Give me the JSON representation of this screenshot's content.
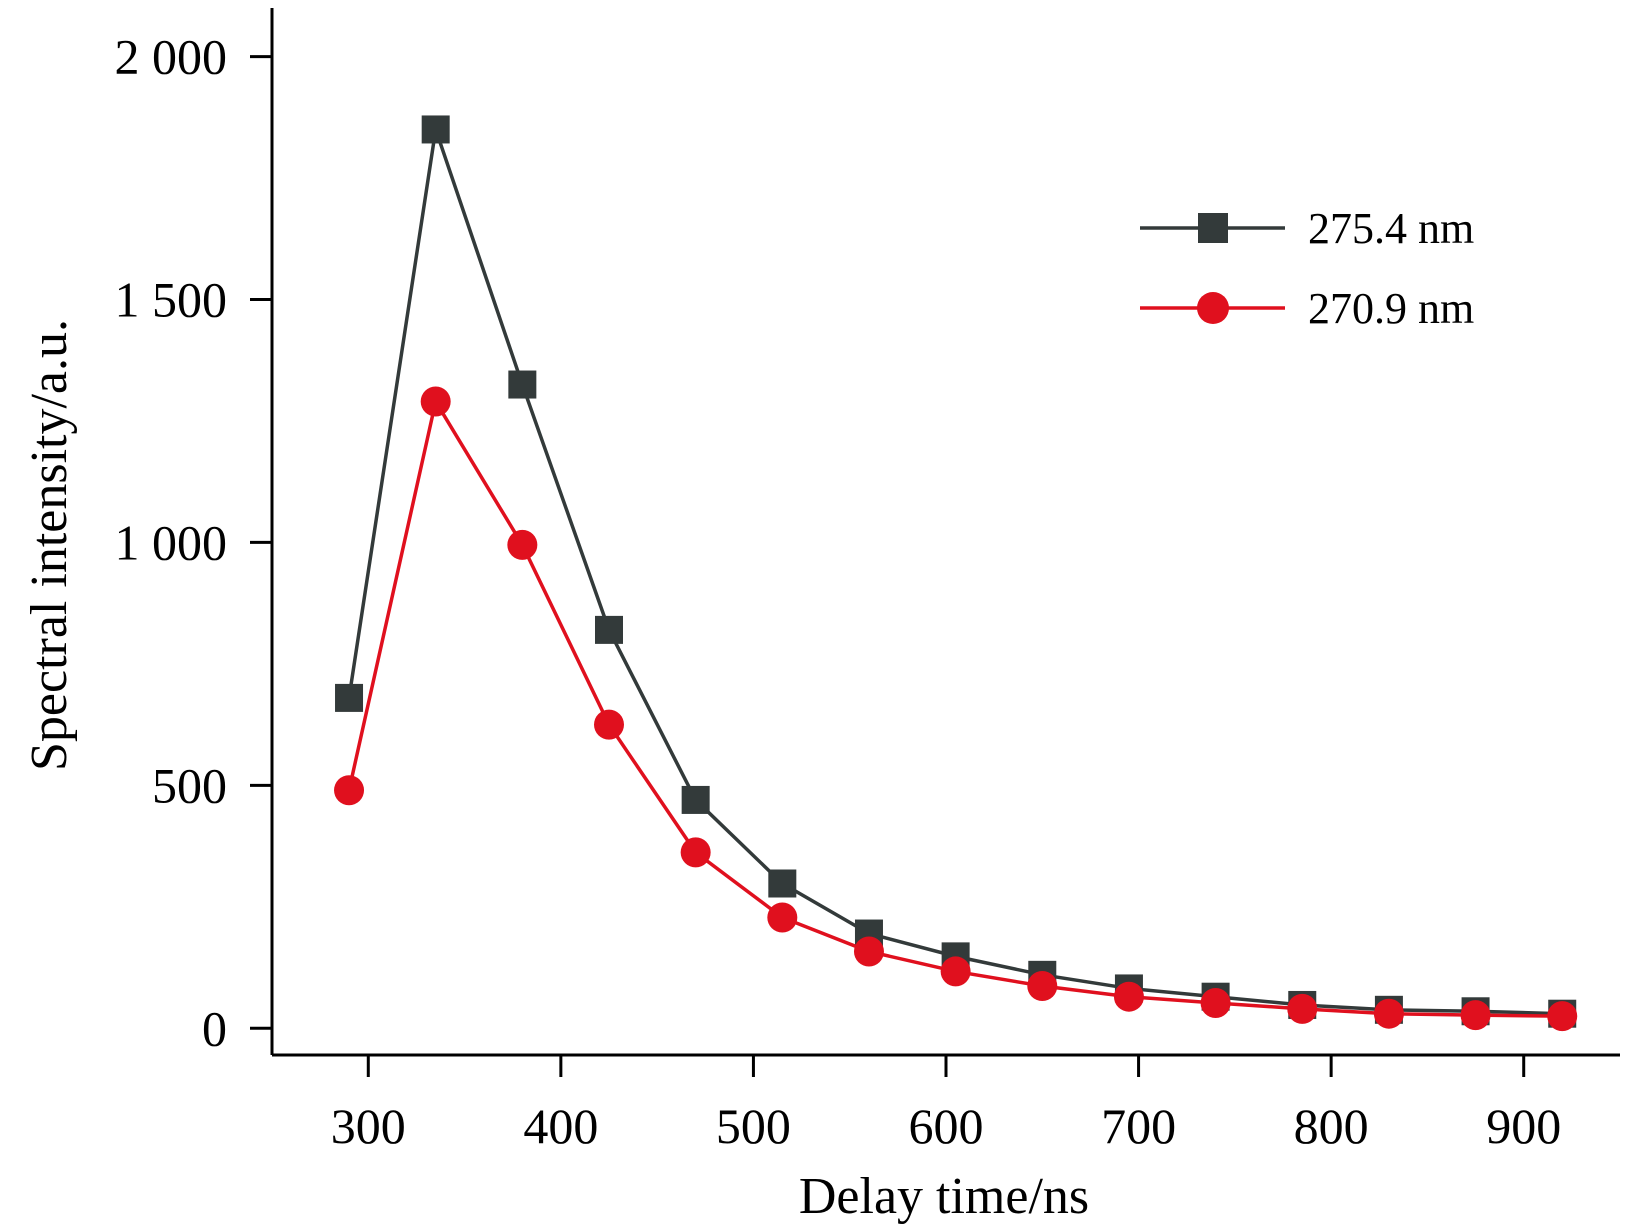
{
  "chart_data": {
    "type": "line",
    "xlabel": "Delay time/ns",
    "ylabel": "Spectral intensity/a.u.",
    "xlim": [
      250,
      950
    ],
    "ylim": [
      -55,
      2100
    ],
    "x_ticks": [
      300,
      400,
      500,
      600,
      700,
      800,
      900
    ],
    "x_tick_labels": [
      "300",
      "400",
      "500",
      "600",
      "700",
      "800",
      "900"
    ],
    "y_ticks": [
      0,
      500,
      1000,
      1500,
      2000
    ],
    "y_tick_labels": [
      "0",
      "500",
      "1 000",
      "1 500",
      "2 000"
    ],
    "grid": false,
    "legend_position": "top-right",
    "x": [
      290,
      335,
      380,
      425,
      470,
      515,
      560,
      605,
      650,
      695,
      740,
      785,
      830,
      875,
      920
    ],
    "series": [
      {
        "name": "275.4 nm",
        "color": "#333a3a",
        "marker": "square",
        "values": [
          680,
          1850,
          1325,
          820,
          470,
          298,
          195,
          148,
          110,
          82,
          65,
          48,
          38,
          35,
          30
        ]
      },
      {
        "name": "270.9 nm",
        "color": "#e0101e",
        "marker": "circle",
        "values": [
          490,
          1290,
          995,
          625,
          362,
          228,
          158,
          117,
          87,
          65,
          52,
          40,
          30,
          27,
          25
        ]
      }
    ]
  }
}
